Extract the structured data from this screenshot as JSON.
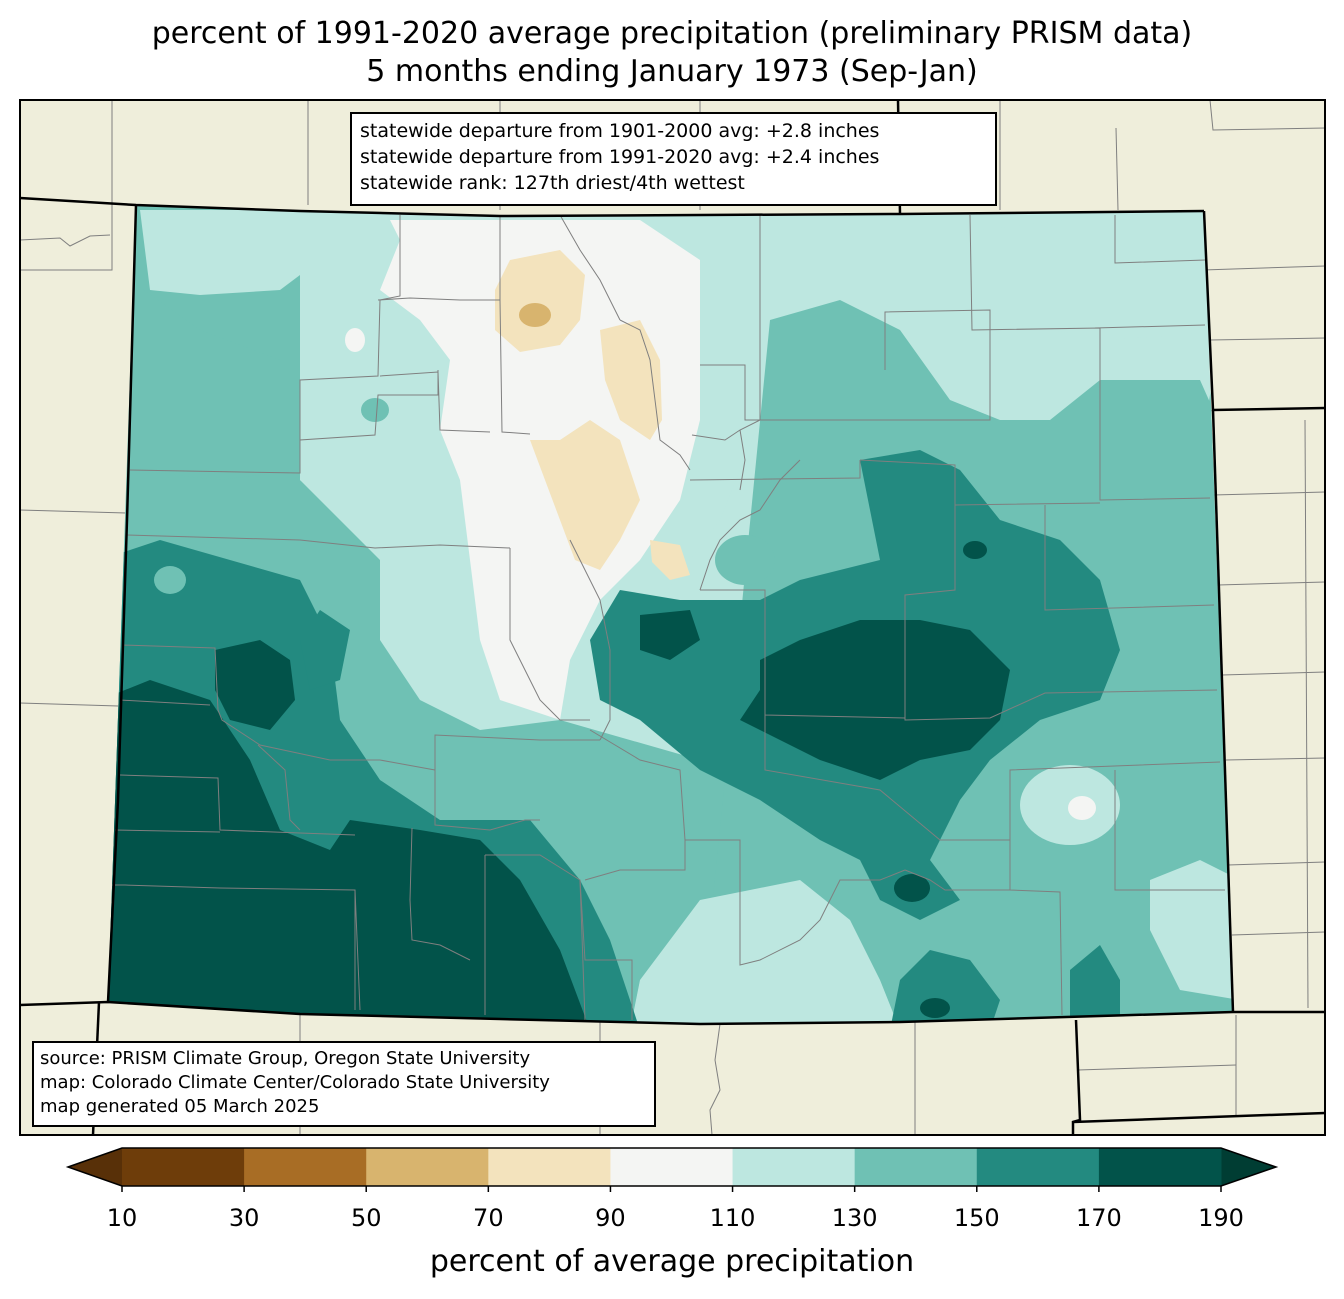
{
  "title": {
    "line1": "percent of 1991-2020 average precipitation (preliminary PRISM data)",
    "line2": "5 months ending January 1973 (Sep-Jan)"
  },
  "stats": {
    "line1": "statewide departure from 1901-2000 avg: +2.8 inches",
    "line2": "statewide departure from 1991-2020 avg: +2.4 inches",
    "line3": "statewide rank: 127th driest/4th wettest"
  },
  "credits": {
    "line1": "source: PRISM Climate Group, Oregon State University",
    "line2": "map: Colorado Climate Center/Colorado State University",
    "line3": "map generated 05 March 2025"
  },
  "colorbar": {
    "label": "percent of average precipitation",
    "ticks": [
      "10",
      "30",
      "50",
      "70",
      "90",
      "110",
      "130",
      "150",
      "170",
      "190"
    ],
    "bins": [
      {
        "range": "10-30",
        "color": "#6e3d0a"
      },
      {
        "range": "30-50",
        "color": "#a86d25"
      },
      {
        "range": "50-70",
        "color": "#d8b46e"
      },
      {
        "range": "70-90",
        "color": "#f3e3bd"
      },
      {
        "range": "90-110",
        "color": "#f4f5f3"
      },
      {
        "range": "110-130",
        "color": "#bde7e0"
      },
      {
        "range": "130-150",
        "color": "#6fc1b4"
      },
      {
        "range": "150-170",
        "color": "#238a80"
      },
      {
        "range": "170-190",
        "color": "#02534a"
      }
    ],
    "under_color": "#583008",
    "over_color": "#003d33"
  },
  "colors": {
    "land": "#efeedb",
    "county_line": "#7f7f7f",
    "state_line": "#000000"
  }
}
